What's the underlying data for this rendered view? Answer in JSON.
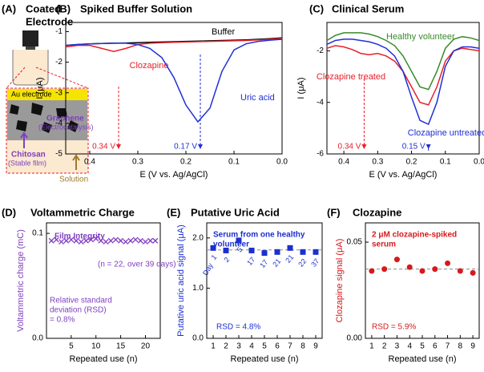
{
  "diagram": {
    "label": "(A)",
    "title_lines": [
      "Coated",
      "Electrode"
    ],
    "au": "Au electrode",
    "graphene": "Graphene",
    "graphene_role": "(Electrocatalysis)",
    "chitosan": "Chitosan",
    "chitosan_role": "(Stable film)",
    "solution": "Solution"
  },
  "chart_data": [
    {
      "type": "line",
      "label": "(B)",
      "title": "Spiked Buffer Solution",
      "x_label": "E (V vs. Ag/AgCl)",
      "y_label": "I (μA)",
      "y_label_color": "#000000",
      "x": [
        0.45,
        0.425,
        0.4,
        0.375,
        0.35,
        0.325,
        0.3,
        0.275,
        0.25,
        0.225,
        0.2,
        0.175,
        0.15,
        0.125,
        0.1,
        0.075,
        0.05,
        0.025,
        0.0
      ],
      "xlim": [
        0.45,
        0.0
      ],
      "xticks": [
        0.4,
        0.3,
        0.2,
        0.1,
        {
          "value": 0,
          "label": "0.0"
        }
      ],
      "ylim": [
        -5,
        -0.7
      ],
      "yticks": [
        -1,
        -2,
        -3,
        -4,
        -5
      ],
      "series": [
        {
          "name": "Buffer",
          "color": "#000000",
          "values": [
            -1.45,
            -1.42,
            -1.4,
            -1.39,
            -1.38,
            -1.37,
            -1.36,
            -1.35,
            -1.34,
            -1.33,
            -1.32,
            -1.31,
            -1.3,
            -1.29,
            -1.28,
            -1.27,
            -1.25,
            -1.23,
            -1.2
          ]
        },
        {
          "name": "Clozapine",
          "color": "#e8202a",
          "values": [
            -1.5,
            -1.45,
            -1.45,
            -1.55,
            -1.65,
            -1.55,
            -1.42,
            -1.38,
            -1.36,
            -1.35,
            -1.34,
            -1.33,
            -1.32,
            -1.31,
            -1.3,
            -1.29,
            -1.27,
            -1.25,
            -1.22
          ]
        },
        {
          "name": "Uric acid",
          "color": "#1f2fd6",
          "values": [
            -1.45,
            -1.42,
            -1.4,
            -1.39,
            -1.38,
            -1.38,
            -1.42,
            -1.55,
            -1.85,
            -2.5,
            -3.4,
            -3.95,
            -3.5,
            -2.3,
            -1.6,
            -1.4,
            -1.32,
            -1.28,
            -1.25
          ]
        }
      ],
      "peak_markers": [
        {
          "value": 0.34,
          "label": "0.34 V",
          "color": "#e8202a"
        },
        {
          "value": 0.17,
          "label": "0.17 V",
          "color": "#1f2fd6"
        }
      ]
    },
    {
      "type": "line",
      "label": "(C)",
      "title": "Clinical Serum",
      "x_label": "E (V vs. Ag/AgCl)",
      "y_label": "I (μA)",
      "y_label_color": "#000000",
      "x": [
        0.45,
        0.425,
        0.4,
        0.375,
        0.35,
        0.325,
        0.3,
        0.275,
        0.25,
        0.225,
        0.2,
        0.175,
        0.15,
        0.125,
        0.1,
        0.075,
        0.05,
        0.025,
        0.0
      ],
      "xlim": [
        0.45,
        0.0
      ],
      "xticks": [
        0.4,
        0.3,
        0.2,
        0.1,
        {
          "value": 0,
          "label": "0.0"
        }
      ],
      "ylim": [
        -6,
        -0.9
      ],
      "yticks": [
        -2,
        -4,
        -6
      ],
      "series": [
        {
          "name": "Healthy volunteer",
          "color": "#3a8a2a",
          "values": [
            -1.6,
            -1.4,
            -1.3,
            -1.3,
            -1.3,
            -1.35,
            -1.45,
            -1.6,
            -1.8,
            -2.2,
            -2.8,
            -3.4,
            -3.5,
            -2.8,
            -1.9,
            -1.55,
            -1.45,
            -1.5,
            -1.6
          ]
        },
        {
          "name": "Clozapine treated",
          "color": "#e8202a",
          "values": [
            -1.9,
            -1.8,
            -1.85,
            -1.95,
            -2.1,
            -2.15,
            -2.1,
            -2.2,
            -2.4,
            -2.8,
            -3.4,
            -4.0,
            -4.1,
            -3.4,
            -2.4,
            -2.0,
            -1.9,
            -1.95,
            -2.0
          ]
        },
        {
          "name": "Clozapine untreated",
          "color": "#1f2fd6",
          "values": [
            -1.75,
            -1.6,
            -1.55,
            -1.55,
            -1.6,
            -1.65,
            -1.75,
            -1.9,
            -2.2,
            -2.8,
            -3.8,
            -4.7,
            -4.85,
            -4.0,
            -2.6,
            -2.0,
            -1.85,
            -1.85,
            -1.9
          ]
        }
      ],
      "peak_markers": [
        {
          "value": 0.34,
          "label": "0.34 V",
          "color": "#e8202a"
        },
        {
          "value": 0.15,
          "label": "0.15 V",
          "color": "#1f2fd6"
        }
      ]
    },
    {
      "type": "scatter",
      "marker": "cross",
      "label": "(D)",
      "title": "Voltammetric Charge",
      "x_label": "Repeated use (n)",
      "y_label": "Voltammetric charge (mC)",
      "y_label_color": "#7f3fbf",
      "color": "#7f3fbf",
      "x": [
        1,
        2,
        3,
        4,
        5,
        6,
        7,
        8,
        9,
        10,
        11,
        12,
        13,
        14,
        15,
        16,
        17,
        18,
        19,
        20,
        21,
        22
      ],
      "values": [
        0.093,
        0.094,
        0.092,
        0.093,
        0.094,
        0.093,
        0.092,
        0.093,
        0.094,
        0.095,
        0.093,
        0.092,
        0.093,
        0.094,
        0.093,
        0.092,
        0.093,
        0.094,
        0.093,
        0.092,
        0.093,
        0.093
      ],
      "xlim": [
        0,
        23
      ],
      "xticks": [
        5,
        10,
        15,
        20
      ],
      "ylim": [
        0,
        0.11
      ],
      "yticks": [
        {
          "value": 0,
          "label": "0.0"
        },
        0.1
      ],
      "annotations": [
        {
          "lines": [
            "Film Integrity"
          ],
          "color": "#7f3fbf",
          "bold": true
        },
        {
          "lines": [
            "(n = 22, over 39 days)"
          ],
          "color": "#7f3fbf",
          "bold": false
        },
        {
          "lines": [
            "Relative standard",
            "deviation (RSD)",
            "= 0.8%"
          ],
          "color": "#7f3fbf",
          "bold": false
        }
      ]
    },
    {
      "type": "scatter",
      "marker": "square",
      "label": "(E)",
      "title": "Putative Uric Acid",
      "x_label": "Repeated use (n)",
      "y_label": "Putative uric acid signal (μA)",
      "y_label_color": "#1c2fd0",
      "color": "#1c2fd0",
      "x": [
        1,
        2,
        3,
        4,
        5,
        6,
        7,
        8,
        9
      ],
      "values": [
        1.8,
        1.75,
        1.95,
        1.75,
        1.7,
        1.72,
        1.8,
        1.72,
        1.72
      ],
      "point_labels": [
        "1",
        "2",
        "5",
        "17",
        "17",
        "21",
        "21",
        "22",
        "37"
      ],
      "point_label_title": "Day",
      "xlim": [
        0.5,
        9.5
      ],
      "xticks": [
        1,
        2,
        3,
        4,
        5,
        6,
        7,
        8,
        9
      ],
      "ylim": [
        0,
        2.3
      ],
      "yticks": [
        {
          "value": 0,
          "label": "0.0"
        },
        {
          "value": 1,
          "label": "1.0"
        },
        {
          "value": 2,
          "label": "2.0"
        }
      ],
      "reference_line": 1.76,
      "annotations": [
        {
          "lines": [
            "Serum from one healthy",
            "volunteer"
          ],
          "color": "#1c2fd0",
          "bold": true
        },
        {
          "lines": [
            "RSD = 4.8%"
          ],
          "color": "#1c2fd0",
          "bold": false
        }
      ]
    },
    {
      "type": "scatter",
      "marker": "circle",
      "label": "(F)",
      "title": "Clozapine",
      "x_label": "Repeated use (n)",
      "y_label": "Clozapine signal (μA)",
      "y_label_color": "#d7191c",
      "color": "#d7191c",
      "x": [
        1,
        2,
        3,
        4,
        5,
        6,
        7,
        8,
        9
      ],
      "values": [
        0.035,
        0.036,
        0.041,
        0.037,
        0.035,
        0.036,
        0.039,
        0.035,
        0.034
      ],
      "xlim": [
        0.5,
        9.5
      ],
      "xticks": [
        1,
        2,
        3,
        4,
        5,
        6,
        7,
        8,
        9
      ],
      "ylim": [
        0,
        0.06
      ],
      "yticks": [
        {
          "value": 0,
          "label": "0.00"
        },
        {
          "value": 0.05,
          "label": "0.05"
        }
      ],
      "reference_line": 0.036,
      "annotations": [
        {
          "lines": [
            "2 μM clozapine-spiked",
            "serum"
          ],
          "color": "#d7191c",
          "bold": true
        },
        {
          "lines": [
            "RSD = 5.9%"
          ],
          "color": "#d7191c",
          "bold": false
        }
      ]
    }
  ]
}
